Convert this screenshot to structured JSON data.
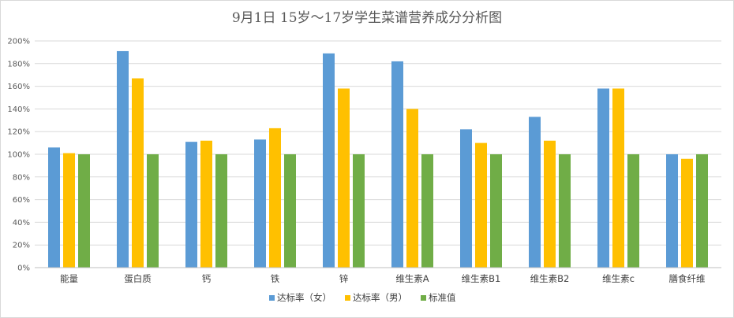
{
  "chart_data": {
    "type": "bar",
    "title": "9月1日 15岁～17岁学生菜谱营养成分分析图",
    "xlabel": "",
    "ylabel": "",
    "ylim": [
      0,
      200
    ],
    "y_ticks": [
      0,
      20,
      40,
      60,
      80,
      100,
      120,
      140,
      160,
      180,
      200
    ],
    "y_tick_suffix": "%",
    "grid": true,
    "legend_position": "bottom",
    "categories": [
      "能量",
      "蛋白质",
      "钙",
      "铁",
      "锌",
      "维生素A",
      "维生素B1",
      "维生素B2",
      "维生素c",
      "膳食纤维"
    ],
    "series": [
      {
        "name": "达标率（女）",
        "color": "#5b9bd5",
        "values": [
          106,
          191,
          111,
          113,
          189,
          182,
          122,
          133,
          158,
          100
        ]
      },
      {
        "name": "达标率（男）",
        "color": "#ffc000",
        "values": [
          101,
          167,
          112,
          123,
          158,
          140,
          110,
          112,
          158,
          96
        ]
      },
      {
        "name": "标准值",
        "color": "#70ad47",
        "values": [
          100,
          100,
          100,
          100,
          100,
          100,
          100,
          100,
          100,
          100
        ]
      }
    ]
  }
}
